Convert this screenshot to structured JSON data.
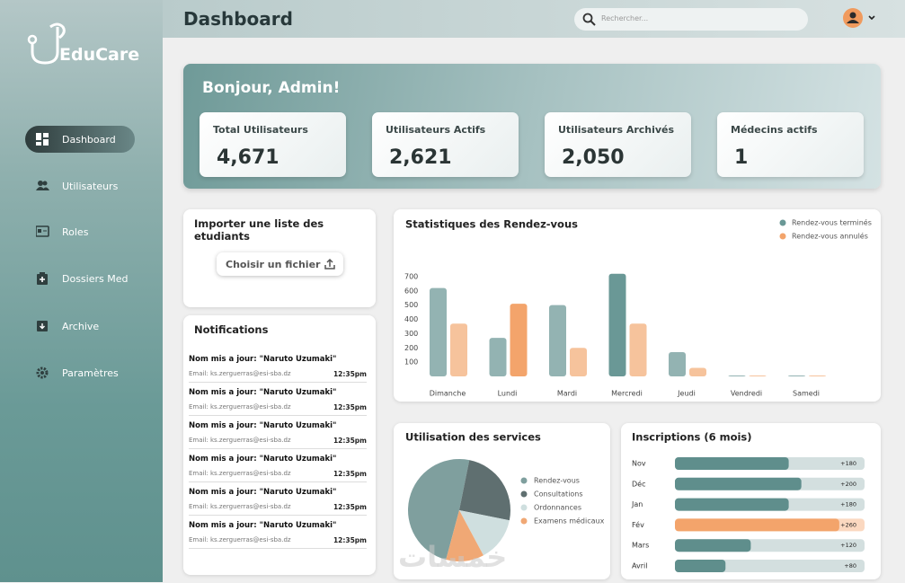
{
  "brand": "EduCare",
  "header": {
    "title": "Dashboard",
    "search_placeholder": "Rechercher..."
  },
  "sidebar": {
    "items": [
      "Dashboard",
      "Utilisateurs",
      "Roles",
      "Dossiers Med",
      "Archive",
      "Paramètres"
    ]
  },
  "greeting": "Bonjour, Admin!",
  "stats": [
    {
      "label": "Total Utilisateurs",
      "value": "4,671"
    },
    {
      "label": "Utilisateurs Actifs",
      "value": "2,621"
    },
    {
      "label": "Utilisateurs Archivés",
      "value": "2,050"
    },
    {
      "label": "Médecins actifs",
      "value": "1"
    }
  ],
  "import": {
    "title": "Importer une liste des etudiants",
    "button": "Choisir un fichier"
  },
  "notifications": {
    "title": "Notifications",
    "items": [
      {
        "title": "Nom mis a jour: \"Naruto Uzumaki\"",
        "email": "Email: ks.zerguerras@esi-sba.dz",
        "time": "12:35pm"
      },
      {
        "title": "Nom mis a jour: \"Naruto Uzumaki\"",
        "email": "Email: ks.zerguerras@esi-sba.dz",
        "time": "12:35pm"
      },
      {
        "title": "Nom mis a jour: \"Naruto Uzumaki\"",
        "email": "Email: ks.zerguerras@esi-sba.dz",
        "time": "12:35pm"
      },
      {
        "title": "Nom mis a jour: \"Naruto Uzumaki\"",
        "email": "Email: ks.zerguerras@esi-sba.dz",
        "time": "12:35pm"
      },
      {
        "title": "Nom mis a jour: \"Naruto Uzumaki\"",
        "email": "Email: ks.zerguerras@esi-sba.dz",
        "time": "12:35pm"
      },
      {
        "title": "Nom mis a jour: \"Naruto Uzumaki\"",
        "email": "Email: ks.zerguerras@esi-sba.dz",
        "time": "12:35pm"
      }
    ]
  },
  "appointments": {
    "type": "bar",
    "title": "Statistiques des Rendez-vous",
    "categories": [
      "Dimanche",
      "Lundi",
      "Mardi",
      "Mercredi",
      "Jeudi",
      "Vendredi",
      "Samedi"
    ],
    "series": [
      {
        "name": "Rendez-vous terminés",
        "color": "#6a9896",
        "colors": [
          "#93b3b2",
          "#93b3b2",
          "#93b3b2",
          "#6a9896",
          "#93b3b2",
          "#93b3b2",
          "#93b3b2"
        ],
        "values": [
          620,
          270,
          500,
          720,
          170,
          0,
          0
        ]
      },
      {
        "name": "Rendez-vous annulés",
        "color": "#f3a46b",
        "colors": [
          "#f6c39c",
          "#f3a46b",
          "#f6c39c",
          "#f6c39c",
          "#f6c39c",
          "#f6c39c",
          "#f6c39c"
        ],
        "values": [
          370,
          510,
          200,
          370,
          60,
          0,
          0
        ]
      }
    ],
    "ylim": [
      0,
      750
    ],
    "yticks": [
      100,
      200,
      300,
      400,
      500,
      600,
      700
    ],
    "legend": "top-right"
  },
  "services": {
    "type": "pie",
    "title": "Utilisation des services",
    "series": [
      {
        "name": "Rendez-vous",
        "color": "#7f9f9e",
        "value": 49
      },
      {
        "name": "Consultations",
        "color": "#5f6f70",
        "value": 25
      },
      {
        "name": "Ordonnances",
        "color": "#cfdfdf",
        "value": 14
      },
      {
        "name": "Examens médicaux",
        "color": "#f0a875",
        "value": 12
      }
    ]
  },
  "inscriptions": {
    "type": "hbar",
    "title": "Inscriptions (6 mois)",
    "categories": [
      "Nov",
      "Déc",
      "Jan",
      "Fév",
      "Mars",
      "Avril"
    ],
    "values": [
      180,
      200,
      180,
      260,
      120,
      80
    ],
    "value_labels": [
      "+180",
      "+200",
      "+180",
      "+260",
      "+120",
      "+80"
    ],
    "colors": [
      "#5f8e8c",
      "#5f8e8c",
      "#5f8e8c",
      "#f3a46b",
      "#5f8e8c",
      "#5f8e8c"
    ],
    "track_colors": [
      "#d3dfdf",
      "#d3dfdf",
      "#d3dfdf",
      "#fbd8c0",
      "#d3dfdf",
      "#d3dfdf"
    ],
    "xlim": [
      0,
      300
    ]
  },
  "watermark": "خمسات"
}
